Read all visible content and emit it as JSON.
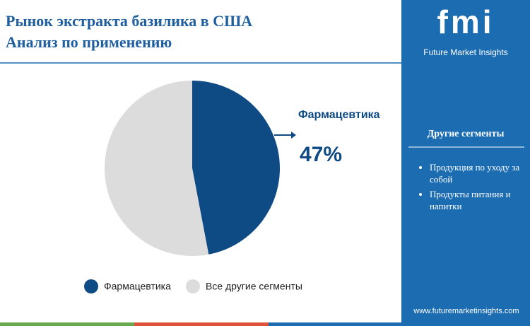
{
  "chart_data": {
    "type": "pie",
    "title": "Рынок экстракта базилика в США",
    "subtitle": "Анализ по применению",
    "categories": [
      "Фармацевтика",
      "Все другие сегменты"
    ],
    "values": [
      47,
      53
    ],
    "value_labels": [
      "47%",
      null
    ],
    "colors": [
      "#0e4a84",
      "#dcdcdc"
    ]
  },
  "logo": {
    "brand": "fmi",
    "name": "Future Market Insights"
  },
  "sidebar": {
    "heading": "Другие сегменты",
    "items": [
      "Продукция по уходу за собой",
      "Продукты питания и напитки"
    ]
  },
  "website": "www.futuremarketinsights.com"
}
